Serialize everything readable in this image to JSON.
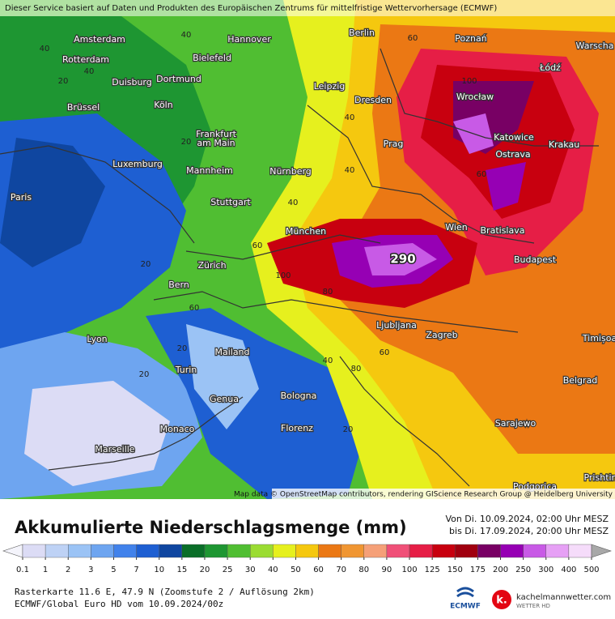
{
  "header": {
    "notice": "Dieser Service basiert auf Daten und Produkten des Europäischen Zentrums für mittelfristige Wettervorhersage (ECMWF)"
  },
  "map": {
    "cities": [
      "Amsterdam",
      "Hannover",
      "Berlin",
      "Poznań",
      "Warscha",
      "Rotterdam",
      "Bielefeld",
      "Łódź",
      "Duisburg",
      "Dortmund",
      "Leipzig",
      "Brüssel",
      "Köln",
      "Dresden",
      "Wrocław",
      "Katowice",
      "Frankfurt",
      "am Main",
      "Prag",
      "Krakau",
      "Ostrava",
      "Luxemburg",
      "Mannheim",
      "Nürnberg",
      "Paris",
      "Stuttgart",
      "München",
      "Wien",
      "Bratislava",
      "Zürich",
      "Budapest",
      "Bern",
      "Ljubljana",
      "Zagreb",
      "Timișoa",
      "Lyon",
      "Mailand",
      "Turin",
      "Belgrad",
      "Genua",
      "Bologna",
      "Florenz",
      "Monaco",
      "Sarajewo",
      "Marseille",
      "Podgorica",
      "Prishtin"
    ],
    "contour_labels": [
      40,
      40,
      60,
      20,
      40,
      20,
      40,
      60,
      100,
      100,
      60,
      80,
      40,
      20,
      60,
      20,
      40,
      20,
      40,
      80,
      60,
      20
    ],
    "max_label": "290",
    "attribution": "Map data © OpenStreetMap contributors, rendering GIScience Research Group @ Heidelberg University"
  },
  "legend": {
    "title": "Akkumulierte Niederschlagsmenge (mm)",
    "period": [
      "Von Di. 10.09.2024, 02:00 Uhr MESZ",
      "bis Di. 17.09.2024, 20:00 Uhr MESZ"
    ],
    "levels": [
      0.1,
      1,
      2,
      3,
      5,
      7,
      10,
      15,
      20,
      25,
      30,
      40,
      50,
      60,
      70,
      80,
      90,
      100,
      125,
      150,
      175,
      200,
      250,
      300,
      400,
      500
    ],
    "colors": [
      "#f4f4fb",
      "#dcdcf5",
      "#bed2f5",
      "#9bc3f5",
      "#6ea5f0",
      "#4182eb",
      "#1e5fd2",
      "#0f46a0",
      "#0a6e28",
      "#1e9632",
      "#50be32",
      "#9bdc32",
      "#e6f01e",
      "#f5c80f",
      "#eb7814",
      "#f09632",
      "#f5a078",
      "#f05078",
      "#e61e46",
      "#c8000f",
      "#a0000f",
      "#780064",
      "#9600b4",
      "#c85ae6",
      "#e6a0f5",
      "#f5dcfa",
      "#a8a8a8"
    ]
  },
  "footer": {
    "location": "Rasterkarte 11.6 E, 47.9 N (Zoomstufe 2 / Auflösung 2km)",
    "model": "ECMWF/Global Euro HD vom 10.09.2024/00z",
    "ecmwf_logo": "ECMWF",
    "brand": "kachelmannwetter.com",
    "brand_sub": "WETTER HD"
  }
}
